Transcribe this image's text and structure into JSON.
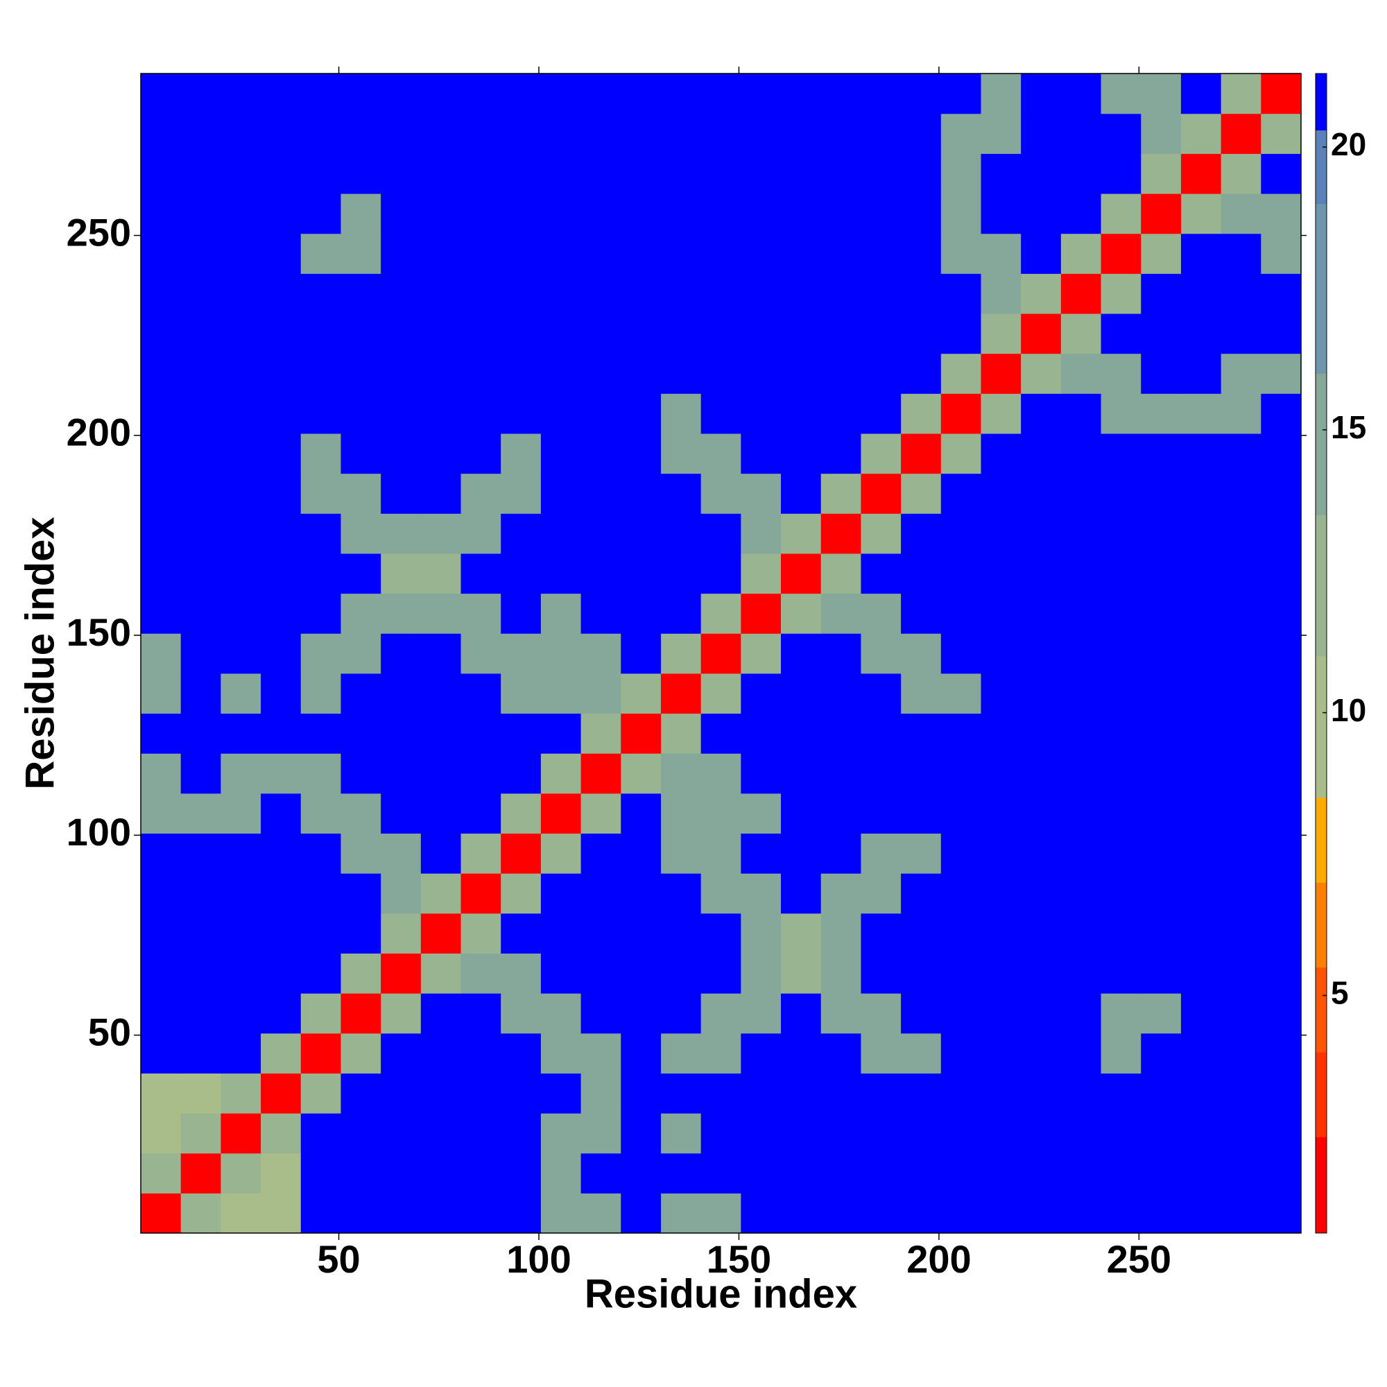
{
  "chart_data": {
    "type": "heatmap",
    "x_label": "Residue index",
    "y_label": "Residue index",
    "x_bins": [
      0.5,
      10.5,
      20.5,
      30.5,
      40.5,
      50.5,
      60.5,
      70.5,
      80.5,
      90.5,
      100.5,
      110.5,
      120.5,
      130.5,
      140.5,
      150.5,
      160.5,
      170.5,
      180.5,
      190.5,
      200.5,
      210.5,
      220.5,
      230.5,
      240.5,
      250.5,
      260.5,
      270.5,
      280.5,
      290.5
    ],
    "y_bins": [
      0.5,
      10.5,
      20.5,
      30.5,
      40.5,
      50.5,
      60.5,
      70.5,
      80.5,
      90.5,
      100.5,
      110.5,
      120.5,
      130.5,
      140.5,
      150.5,
      160.5,
      170.5,
      180.5,
      190.5,
      200.5,
      210.5,
      220.5,
      230.5,
      240.5,
      250.5,
      260.5,
      270.5,
      280.5,
      290.5
    ],
    "xlim": [
      0.5,
      290.5
    ],
    "ylim": [
      0.5,
      290.5
    ],
    "xticks": [
      50,
      100,
      150,
      200,
      250
    ],
    "yticks": [
      50,
      100,
      150,
      200,
      250
    ],
    "clim": [
      0.8,
      21.3
    ],
    "cticks": [
      5,
      10,
      15,
      20
    ],
    "color_steps": [
      {
        "upto": 2.5,
        "color": "#ff0000"
      },
      {
        "upto": 4,
        "color": "#ff3300"
      },
      {
        "upto": 5.5,
        "color": "#ff5500"
      },
      {
        "upto": 7,
        "color": "#ff8000"
      },
      {
        "upto": 8.5,
        "color": "#ffaa00"
      },
      {
        "upto": 11,
        "color": "#a9bd8a"
      },
      {
        "upto": 13.5,
        "color": "#98b490"
      },
      {
        "upto": 16,
        "color": "#85a89a"
      },
      {
        "upto": 19,
        "color": "#6f96ab"
      },
      {
        "upto": 20.3,
        "color": "#5a82b8"
      },
      {
        "upto": 21.3,
        "color": "#0000ff"
      }
    ],
    "values": [
      [
        2,
        12,
        10,
        10,
        21,
        21,
        21,
        21,
        21,
        21,
        15,
        15,
        21,
        15,
        15,
        21,
        21,
        21,
        21,
        21,
        21,
        21,
        21,
        21,
        21,
        21,
        21,
        21,
        21
      ],
      [
        12,
        2,
        12,
        10,
        21,
        21,
        21,
        21,
        21,
        21,
        15,
        21,
        21,
        21,
        21,
        21,
        21,
        21,
        21,
        21,
        21,
        21,
        21,
        21,
        21,
        21,
        21,
        21,
        21
      ],
      [
        10,
        12,
        2,
        12,
        21,
        21,
        21,
        21,
        21,
        21,
        15,
        15,
        21,
        15,
        21,
        21,
        21,
        21,
        21,
        21,
        21,
        21,
        21,
        21,
        21,
        21,
        21,
        21,
        21
      ],
      [
        10,
        10,
        12,
        2,
        12,
        21,
        21,
        21,
        21,
        21,
        21,
        14,
        21,
        21,
        21,
        21,
        21,
        21,
        21,
        21,
        21,
        21,
        21,
        21,
        21,
        21,
        21,
        21,
        21
      ],
      [
        21,
        21,
        21,
        12,
        2,
        12,
        21,
        21,
        21,
        21,
        14,
        14,
        21,
        14,
        14,
        21,
        21,
        21,
        14,
        14,
        21,
        21,
        21,
        21,
        14,
        21,
        21,
        21,
        21
      ],
      [
        21,
        21,
        21,
        21,
        12,
        2,
        12,
        21,
        21,
        14,
        14,
        21,
        21,
        21,
        14,
        14,
        21,
        14,
        14,
        21,
        21,
        21,
        21,
        21,
        14,
        14,
        21,
        21,
        21
      ],
      [
        21,
        21,
        21,
        21,
        21,
        12,
        2,
        12,
        14,
        14,
        21,
        21,
        21,
        21,
        21,
        14,
        13,
        14,
        21,
        21,
        21,
        21,
        21,
        21,
        21,
        21,
        21,
        21,
        21
      ],
      [
        21,
        21,
        21,
        21,
        21,
        21,
        12,
        2,
        12,
        21,
        21,
        21,
        21,
        21,
        21,
        14,
        13,
        14,
        21,
        21,
        21,
        21,
        21,
        21,
        21,
        21,
        21,
        21,
        21
      ],
      [
        21,
        21,
        21,
        21,
        21,
        21,
        14,
        12,
        2,
        12,
        21,
        21,
        21,
        21,
        14,
        14,
        21,
        14,
        14,
        21,
        21,
        21,
        21,
        21,
        21,
        21,
        21,
        21,
        21
      ],
      [
        21,
        21,
        21,
        21,
        21,
        14,
        14,
        21,
        12,
        2,
        12,
        21,
        21,
        14,
        14,
        21,
        21,
        21,
        14,
        14,
        21,
        21,
        21,
        21,
        21,
        21,
        21,
        21,
        21
      ],
      [
        15,
        15,
        15,
        21,
        14,
        14,
        21,
        21,
        21,
        12,
        2,
        12,
        21,
        14,
        14,
        14,
        21,
        21,
        21,
        21,
        21,
        21,
        21,
        21,
        21,
        21,
        21,
        21,
        21
      ],
      [
        15,
        21,
        15,
        14,
        14,
        21,
        21,
        21,
        21,
        21,
        12,
        2,
        12,
        14,
        14,
        21,
        21,
        21,
        21,
        21,
        21,
        21,
        21,
        21,
        21,
        21,
        21,
        21,
        21
      ],
      [
        21,
        21,
        21,
        21,
        21,
        21,
        21,
        21,
        21,
        21,
        21,
        12,
        2,
        12,
        21,
        21,
        21,
        21,
        21,
        21,
        21,
        21,
        21,
        21,
        21,
        21,
        21,
        21,
        21
      ],
      [
        15,
        21,
        15,
        21,
        14,
        21,
        21,
        21,
        21,
        14,
        14,
        14,
        12,
        2,
        12,
        21,
        21,
        21,
        21,
        14,
        14,
        21,
        21,
        21,
        21,
        21,
        21,
        21,
        21
      ],
      [
        15,
        21,
        21,
        21,
        14,
        14,
        21,
        21,
        14,
        14,
        14,
        14,
        21,
        12,
        2,
        12,
        21,
        21,
        14,
        14,
        21,
        21,
        21,
        21,
        21,
        21,
        21,
        21,
        21
      ],
      [
        21,
        21,
        21,
        21,
        21,
        14,
        14,
        14,
        14,
        21,
        14,
        21,
        21,
        21,
        12,
        2,
        12,
        14,
        14,
        21,
        21,
        21,
        21,
        21,
        21,
        21,
        21,
        21,
        21
      ],
      [
        21,
        21,
        21,
        21,
        21,
        21,
        13,
        13,
        21,
        21,
        21,
        21,
        21,
        21,
        21,
        12,
        2,
        12,
        21,
        21,
        21,
        21,
        21,
        21,
        21,
        21,
        21,
        21,
        21
      ],
      [
        21,
        21,
        21,
        21,
        21,
        14,
        14,
        14,
        14,
        21,
        21,
        21,
        21,
        21,
        21,
        14,
        12,
        2,
        12,
        21,
        21,
        21,
        21,
        21,
        21,
        21,
        21,
        21,
        21
      ],
      [
        21,
        21,
        21,
        21,
        14,
        14,
        21,
        21,
        14,
        14,
        21,
        21,
        21,
        21,
        14,
        14,
        21,
        12,
        2,
        12,
        21,
        21,
        21,
        21,
        21,
        21,
        21,
        21,
        21
      ],
      [
        21,
        21,
        21,
        21,
        14,
        21,
        21,
        21,
        21,
        14,
        21,
        21,
        21,
        14,
        14,
        21,
        21,
        21,
        12,
        2,
        12,
        21,
        21,
        21,
        21,
        21,
        21,
        21,
        21
      ],
      [
        21,
        21,
        21,
        21,
        21,
        21,
        21,
        21,
        21,
        21,
        21,
        21,
        21,
        14,
        21,
        21,
        21,
        21,
        21,
        12,
        2,
        12,
        21,
        21,
        14,
        14,
        14,
        14,
        21
      ],
      [
        21,
        21,
        21,
        21,
        21,
        21,
        21,
        21,
        21,
        21,
        21,
        21,
        21,
        21,
        21,
        21,
        21,
        21,
        21,
        21,
        12,
        2,
        12,
        14,
        14,
        21,
        21,
        14,
        14
      ],
      [
        21,
        21,
        21,
        21,
        21,
        21,
        21,
        21,
        21,
        21,
        21,
        21,
        21,
        21,
        21,
        21,
        21,
        21,
        21,
        21,
        21,
        12,
        2,
        12,
        21,
        21,
        21,
        21,
        21
      ],
      [
        21,
        21,
        21,
        21,
        21,
        21,
        21,
        21,
        21,
        21,
        21,
        21,
        21,
        21,
        21,
        21,
        21,
        21,
        21,
        21,
        21,
        14,
        12,
        2,
        12,
        21,
        21,
        21,
        21
      ],
      [
        21,
        21,
        21,
        21,
        14,
        14,
        21,
        21,
        21,
        21,
        21,
        21,
        21,
        21,
        21,
        21,
        21,
        21,
        21,
        21,
        14,
        14,
        21,
        12,
        2,
        12,
        21,
        21,
        14
      ],
      [
        21,
        21,
        21,
        21,
        21,
        14,
        21,
        21,
        21,
        21,
        21,
        21,
        21,
        21,
        21,
        21,
        21,
        21,
        21,
        21,
        14,
        21,
        21,
        21,
        12,
        2,
        12,
        14,
        14
      ],
      [
        21,
        21,
        21,
        21,
        21,
        21,
        21,
        21,
        21,
        21,
        21,
        21,
        21,
        21,
        21,
        21,
        21,
        21,
        21,
        21,
        14,
        21,
        21,
        21,
        21,
        12,
        2,
        12,
        21
      ],
      [
        21,
        21,
        21,
        21,
        21,
        21,
        21,
        21,
        21,
        21,
        21,
        21,
        21,
        21,
        21,
        21,
        21,
        21,
        21,
        21,
        14,
        14,
        21,
        21,
        21,
        14,
        12,
        2,
        12
      ],
      [
        21,
        21,
        21,
        21,
        21,
        21,
        21,
        21,
        21,
        21,
        21,
        21,
        21,
        21,
        21,
        21,
        21,
        21,
        21,
        21,
        21,
        14,
        21,
        21,
        14,
        14,
        21,
        12,
        2
      ]
    ]
  }
}
